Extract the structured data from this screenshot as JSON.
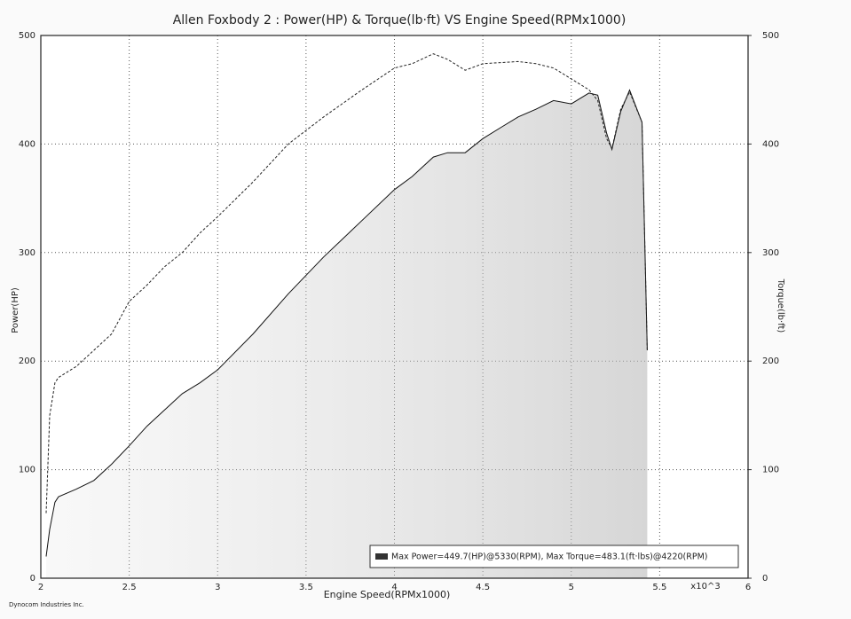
{
  "chart_data": {
    "type": "line",
    "title": "Allen Foxbody 2 : Power(HP) & Torque(lb·ft) VS Engine Speed(RPMx1000)",
    "x_label": "Engine Speed(RPMx1000)",
    "x_unit": "x10^3",
    "y_label": "Power(HP)",
    "y2_label": "Torque(lb·ft)",
    "legend_text": "Max Power=449.7(HP)@5330(RPM), Max Torque=483.1(ft·lbs)@4220(RPM)",
    "footer": "Dynocom Industries Inc.",
    "x": [
      2.03,
      2.05,
      2.08,
      2.1,
      2.2,
      2.3,
      2.4,
      2.5,
      2.6,
      2.7,
      2.8,
      2.9,
      3.0,
      3.2,
      3.4,
      3.6,
      3.8,
      4.0,
      4.1,
      4.22,
      4.3,
      4.4,
      4.5,
      4.6,
      4.7,
      4.8,
      4.9,
      5.0,
      5.1,
      5.15,
      5.2,
      5.23,
      5.28,
      5.33,
      5.4,
      5.43
    ],
    "series": [
      {
        "name": "Power",
        "color": "#111111",
        "dash": false,
        "values": [
          20,
          45,
          70,
          75,
          82,
          90,
          105,
          122,
          140,
          155,
          170,
          180,
          192,
          225,
          262,
          296,
          327,
          358,
          370,
          388,
          392,
          392,
          405,
          415,
          425,
          432,
          440,
          437,
          447,
          445,
          410,
          395,
          430,
          449.7,
          420,
          210
        ]
      },
      {
        "name": "Torque",
        "color": "#222222",
        "dash": true,
        "axis": "y2",
        "values": [
          60,
          150,
          180,
          185,
          195,
          210,
          225,
          255,
          270,
          287,
          300,
          318,
          333,
          365,
          400,
          425,
          448,
          470,
          474,
          483.1,
          478,
          468,
          474,
          475,
          476,
          474,
          470,
          460,
          450,
          440,
          405,
          396,
          432,
          448,
          420,
          210
        ]
      }
    ],
    "xlim": [
      2,
      6
    ],
    "xticks": [
      2,
      2.5,
      3,
      3.5,
      4,
      4.5,
      5,
      5.5,
      6
    ],
    "ylim": [
      0,
      500
    ],
    "yticks": [
      0,
      100,
      200,
      300,
      400,
      500
    ],
    "y2lim": [
      0,
      500
    ],
    "y2ticks": [
      0,
      100,
      200,
      300,
      400,
      500
    ],
    "grid": true
  }
}
